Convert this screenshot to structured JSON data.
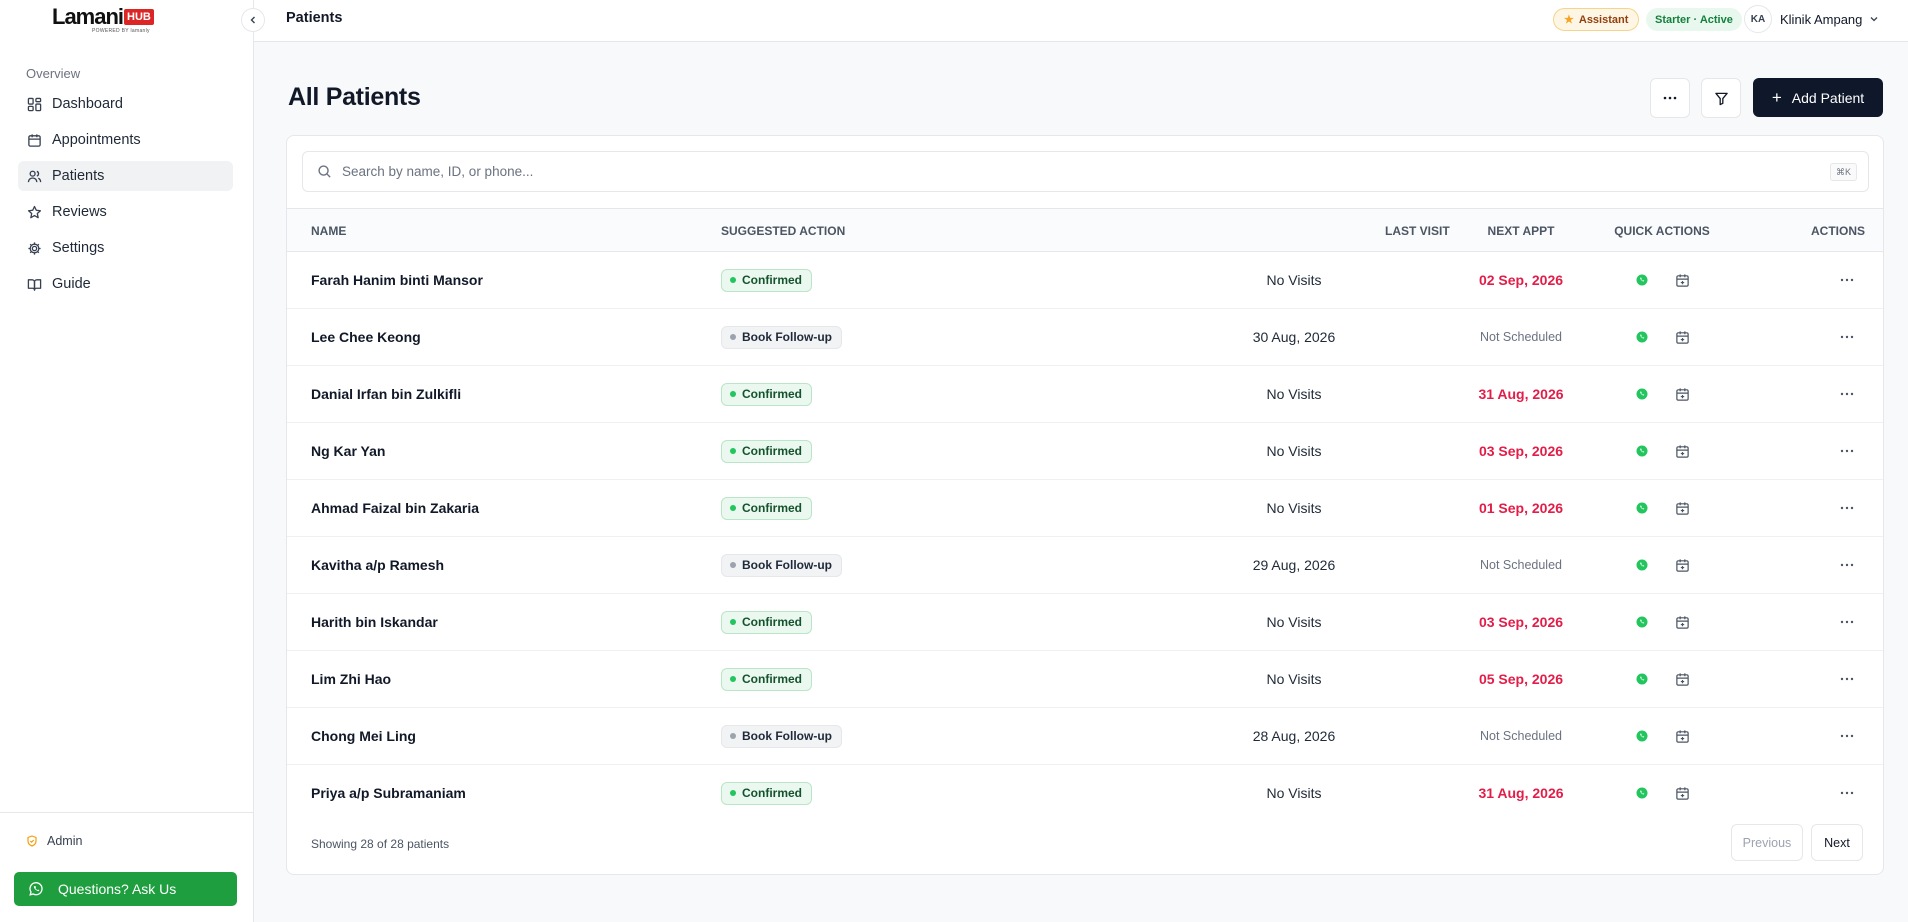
{
  "brand": {
    "name": "Lamani",
    "badge": "HUB",
    "tagline": "POWERED BY lamanly"
  },
  "sidebar": {
    "section_label": "Overview",
    "items": [
      {
        "label": "Dashboard",
        "icon": "dashboard-icon"
      },
      {
        "label": "Appointments",
        "icon": "calendar-icon"
      },
      {
        "label": "Patients",
        "icon": "users-icon",
        "active": true
      },
      {
        "label": "Reviews",
        "icon": "star-icon"
      },
      {
        "label": "Settings",
        "icon": "gear-icon"
      },
      {
        "label": "Guide",
        "icon": "book-icon"
      }
    ],
    "admin_label": "Admin",
    "ask_label": "Questions? Ask Us"
  },
  "topbar": {
    "breadcrumb": "Patients",
    "assistant_label": "Assistant",
    "plan_label": "Starter · Active",
    "account_initials": "KA",
    "account_name": "Klinik Ampang"
  },
  "page": {
    "title": "All Patients",
    "add_button": "Add Patient"
  },
  "search": {
    "placeholder": "Search by name, ID, or phone...",
    "shortcut": "⌘K"
  },
  "table": {
    "columns": {
      "name": "NAME",
      "suggested_action": "SUGGESTED ACTION",
      "last_visit": "LAST VISIT",
      "next_appt": "NEXT APPT",
      "quick_actions": "QUICK ACTIONS",
      "actions": "ACTIONS"
    },
    "rows": [
      {
        "name": "Farah Hanim binti Mansor",
        "action": "Confirmed",
        "last_visit": "No Visits",
        "next_appt": "02 Sep, 2026"
      },
      {
        "name": "Lee Chee Keong",
        "action": "Book Follow-up",
        "last_visit": "30 Aug, 2026",
        "next_appt": "Not Scheduled"
      },
      {
        "name": "Danial Irfan bin Zulkifli",
        "action": "Confirmed",
        "last_visit": "No Visits",
        "next_appt": "31 Aug, 2026"
      },
      {
        "name": "Ng Kar Yan",
        "action": "Confirmed",
        "last_visit": "No Visits",
        "next_appt": "03 Sep, 2026"
      },
      {
        "name": "Ahmad Faizal bin Zakaria",
        "action": "Confirmed",
        "last_visit": "No Visits",
        "next_appt": "01 Sep, 2026"
      },
      {
        "name": "Kavitha a/p Ramesh",
        "action": "Book Follow-up",
        "last_visit": "29 Aug, 2026",
        "next_appt": "Not Scheduled"
      },
      {
        "name": "Harith bin Iskandar",
        "action": "Confirmed",
        "last_visit": "No Visits",
        "next_appt": "03 Sep, 2026"
      },
      {
        "name": "Lim Zhi Hao",
        "action": "Confirmed",
        "last_visit": "No Visits",
        "next_appt": "05 Sep, 2026"
      },
      {
        "name": "Chong Mei Ling",
        "action": "Book Follow-up",
        "last_visit": "28 Aug, 2026",
        "next_appt": "Not Scheduled"
      },
      {
        "name": "Priya a/p Subramaniam",
        "action": "Confirmed",
        "last_visit": "No Visits",
        "next_appt": "31 Aug, 2026"
      }
    ],
    "footer_text": "Showing 28 of 28 patients",
    "prev_label": "Previous",
    "next_label": "Next"
  },
  "colors": {
    "brand_red": "#dc2626",
    "primary": "#0f172a",
    "whatsapp_green": "#1e9e3e",
    "date_red": "#e11d48",
    "confirmed_green": "#22c55e"
  }
}
